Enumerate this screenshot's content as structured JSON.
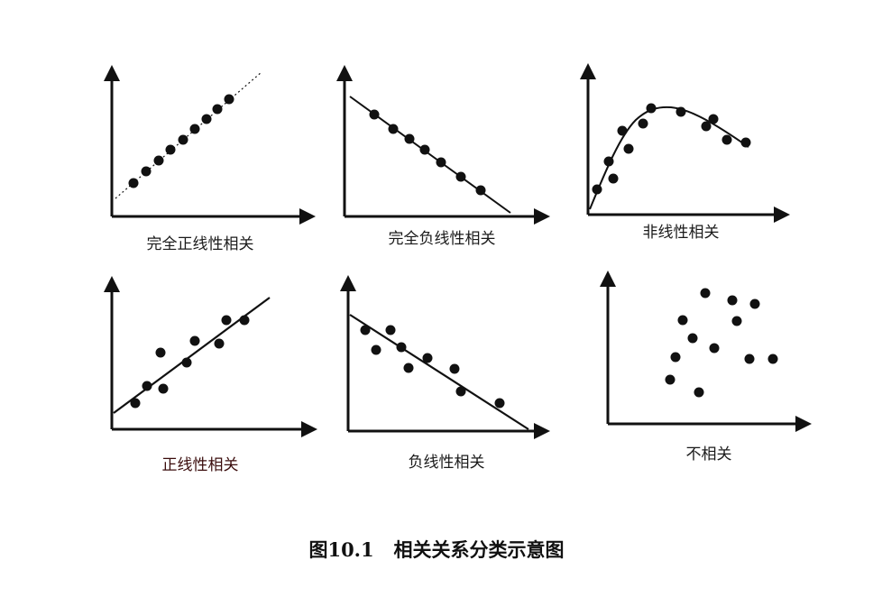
{
  "figure": {
    "caption": "图10.1   相关关系分类示意图",
    "panels": [
      {
        "label": "完全正线性相关"
      },
      {
        "label": "完全负线性相关"
      },
      {
        "label": "非线性相关"
      },
      {
        "label": "正线性相关"
      },
      {
        "label": "负线性相关"
      },
      {
        "label": "不相关"
      }
    ]
  },
  "colors": {
    "ink": "#111111",
    "background": "#ffffff"
  }
}
